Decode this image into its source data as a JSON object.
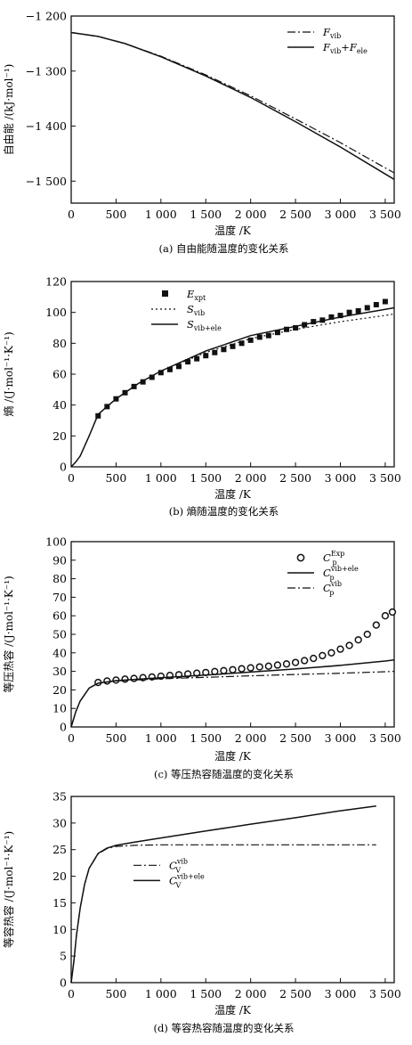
{
  "chart_data": [
    {
      "id": "a",
      "type": "line",
      "caption": "(a) 自由能随温度的变化关系",
      "xlabel": "温度 /K",
      "ylabel": "自由能 /(kJ·mol⁻¹)",
      "xlim": [
        0,
        3600
      ],
      "ylim": [
        -1540,
        -1200
      ],
      "xticks": [
        0,
        500,
        1000,
        1500,
        2000,
        2500,
        3000,
        3500
      ],
      "xtick_labels": [
        "0",
        "500",
        "1 000",
        "1 500",
        "2 000",
        "2 500",
        "3 000",
        "3 500"
      ],
      "yticks": [
        -1200,
        -1300,
        -1400,
        -1500
      ],
      "ytick_labels": [
        "−1 200",
        "−1 300",
        "−1 400",
        "−1 500"
      ],
      "legend_position": "top-right",
      "series": [
        {
          "name": "F_vib",
          "legend_main": "F",
          "legend_sub": "vib",
          "style": "dashdot",
          "x": [
            0,
            300,
            600,
            1000,
            1500,
            2000,
            2500,
            3000,
            3500,
            3600
          ],
          "y": [
            -1230,
            -1237,
            -1250,
            -1273,
            -1307,
            -1345,
            -1387,
            -1430,
            -1476,
            -1485
          ]
        },
        {
          "name": "F_vib+F_ele",
          "legend_main": "F",
          "legend_sub": "vib",
          "legend_extra": "+F",
          "legend_sub2": "ele",
          "style": "solid",
          "x": [
            0,
            300,
            600,
            1000,
            1500,
            2000,
            2500,
            3000,
            3500,
            3600
          ],
          "y": [
            -1230,
            -1237,
            -1250,
            -1274,
            -1309,
            -1348,
            -1392,
            -1438,
            -1487,
            -1497
          ]
        }
      ]
    },
    {
      "id": "b",
      "type": "line",
      "caption": "(b) 熵随温度的变化关系",
      "xlabel": "温度 /K",
      "ylabel": "熵 /(J·mol⁻¹·K⁻¹)",
      "xlim": [
        0,
        3600
      ],
      "ylim": [
        0,
        120
      ],
      "xticks": [
        0,
        500,
        1000,
        1500,
        2000,
        2500,
        3000,
        3500
      ],
      "xtick_labels": [
        "0",
        "500",
        "1 000",
        "1 500",
        "2 000",
        "2 500",
        "3 000",
        "3 500"
      ],
      "yticks": [
        0,
        20,
        40,
        60,
        80,
        100,
        120
      ],
      "ytick_labels": [
        "0",
        "20",
        "40",
        "60",
        "80",
        "100",
        "120"
      ],
      "legend_position": "top-left",
      "series": [
        {
          "name": "E_xpt",
          "legend_main": "E",
          "legend_sub": "xpt",
          "style": "squares",
          "x": [
            300,
            400,
            500,
            600,
            700,
            800,
            900,
            1000,
            1100,
            1200,
            1300,
            1400,
            1500,
            1600,
            1700,
            1800,
            1900,
            2000,
            2100,
            2200,
            2300,
            2400,
            2500,
            2600,
            2700,
            2800,
            2900,
            3000,
            3100,
            3200,
            3300,
            3400,
            3500
          ],
          "y": [
            33,
            39,
            44,
            48,
            52,
            55,
            58,
            61,
            63,
            65,
            68,
            70,
            72,
            74,
            76,
            78,
            80,
            82,
            84,
            85,
            87,
            89,
            90,
            92,
            94,
            95,
            97,
            98,
            100,
            101,
            103,
            105,
            107
          ]
        },
        {
          "name": "S_vib",
          "legend_main": "S",
          "legend_sub": "vib",
          "style": "dotted",
          "x": [
            0,
            50,
            100,
            200,
            300,
            500,
            750,
            1000,
            1500,
            2000,
            2500,
            3000,
            3500,
            3600
          ],
          "y": [
            0,
            3,
            7,
            20,
            34,
            44,
            54,
            62,
            74,
            83,
            89,
            94,
            98,
            99
          ]
        },
        {
          "name": "S_vib+ele",
          "legend_main": "S",
          "legend_sub": "vib+ele",
          "style": "solid",
          "x": [
            0,
            50,
            100,
            200,
            300,
            500,
            750,
            1000,
            1500,
            2000,
            2500,
            3000,
            3500,
            3600
          ],
          "y": [
            0,
            3,
            7,
            20,
            34,
            44,
            54,
            62,
            75,
            85,
            91,
            97,
            102,
            103
          ]
        }
      ]
    },
    {
      "id": "c",
      "type": "line",
      "caption": "(c) 等压热容随温度的变化关系",
      "xlabel": "温度 /K",
      "ylabel": "等压热容 /(J·mol⁻¹·K⁻¹)",
      "xlim": [
        0,
        3600
      ],
      "ylim": [
        0,
        100
      ],
      "xticks": [
        0,
        500,
        1000,
        1500,
        2000,
        2500,
        3000,
        3500
      ],
      "xtick_labels": [
        "0",
        "500",
        "1 000",
        "1 500",
        "2 000",
        "2 500",
        "3 000",
        "3 500"
      ],
      "yticks": [
        0,
        10,
        20,
        30,
        40,
        50,
        60,
        70,
        80,
        90,
        100
      ],
      "ytick_labels": [
        "0",
        "10",
        "20",
        "30",
        "40",
        "50",
        "60",
        "70",
        "80",
        "90",
        "100"
      ],
      "legend_position": "top-right",
      "series": [
        {
          "name": "C_p^Exp",
          "legend_main": "C",
          "legend_sub": "p",
          "legend_sup": "Exp",
          "style": "circles",
          "x": [
            300,
            400,
            500,
            600,
            700,
            800,
            900,
            1000,
            1100,
            1200,
            1300,
            1400,
            1500,
            1600,
            1700,
            1800,
            1900,
            2000,
            2100,
            2200,
            2300,
            2400,
            2500,
            2600,
            2700,
            2800,
            2900,
            3000,
            3100,
            3200,
            3300,
            3400,
            3500,
            3580
          ],
          "y": [
            24,
            24.8,
            25.3,
            25.8,
            26.2,
            26.6,
            27,
            27.4,
            27.8,
            28.2,
            28.6,
            29,
            29.4,
            29.9,
            30.4,
            30.9,
            31.4,
            31.9,
            32.4,
            32.8,
            33.4,
            34,
            34.8,
            35.8,
            37,
            38.5,
            40,
            42,
            44,
            47,
            50,
            55,
            60,
            62
          ]
        },
        {
          "name": "C_p^vib+ele",
          "legend_main": "C",
          "legend_sub": "p",
          "legend_sup": "vib+ele",
          "style": "solid",
          "x": [
            0,
            50,
            100,
            200,
            300,
            500,
            1000,
            1500,
            2000,
            2500,
            3000,
            3500,
            3600
          ],
          "y": [
            0,
            8,
            14,
            21,
            23.6,
            25,
            26.6,
            28,
            29.6,
            31.3,
            33.2,
            35.6,
            36.2
          ]
        },
        {
          "name": "C_p^vib",
          "legend_main": "C",
          "legend_sub": "p",
          "legend_sup": "vib",
          "style": "dashdot",
          "x": [
            0,
            50,
            100,
            200,
            300,
            500,
            1000,
            1500,
            2000,
            2500,
            3000,
            3500,
            3600
          ],
          "y": [
            0,
            8,
            14,
            21,
            23.6,
            24.8,
            26,
            26.8,
            27.6,
            28.3,
            29,
            29.8,
            30
          ]
        }
      ]
    },
    {
      "id": "d",
      "type": "line",
      "caption": "(d) 等容热容随温度的变化关系",
      "xlabel": "温度 /K",
      "ylabel": "等容热容 /(J·mol⁻¹·K⁻¹)",
      "xlim": [
        0,
        3600
      ],
      "ylim": [
        0,
        35
      ],
      "xticks": [
        0,
        500,
        1000,
        1500,
        2000,
        2500,
        3000,
        3500
      ],
      "xtick_labels": [
        "0",
        "500",
        "1 000",
        "1 500",
        "2 000",
        "2 500",
        "3 000",
        "3 500"
      ],
      "yticks": [
        0,
        5,
        10,
        15,
        20,
        25,
        30,
        35
      ],
      "ytick_labels": [
        "0",
        "5",
        "10",
        "15",
        "20",
        "25",
        "30",
        "35"
      ],
      "legend_position": "center-left",
      "series": [
        {
          "name": "C_V^vib",
          "legend_main": "C",
          "legend_sub": "V",
          "legend_sup": "vib",
          "style": "dashdot",
          "x": [
            0,
            30,
            60,
            100,
            150,
            200,
            300,
            400,
            500,
            700,
            1000,
            2000,
            3000,
            3400
          ],
          "y": [
            0,
            4,
            9,
            14,
            18.5,
            21.5,
            24.2,
            25.2,
            25.6,
            25.8,
            25.9,
            25.9,
            25.9,
            25.9
          ]
        },
        {
          "name": "C_V^vib+ele",
          "legend_main": "C",
          "legend_sub": "V",
          "legend_sup": "vib+ele",
          "style": "solid",
          "x": [
            0,
            30,
            60,
            100,
            150,
            200,
            300,
            400,
            500,
            700,
            1000,
            1500,
            2000,
            2500,
            3000,
            3400
          ],
          "y": [
            0,
            4,
            9,
            14,
            18.5,
            21.5,
            24.3,
            25.3,
            25.8,
            26.4,
            27.2,
            28.5,
            29.8,
            31,
            32.3,
            33.2
          ]
        }
      ]
    }
  ]
}
